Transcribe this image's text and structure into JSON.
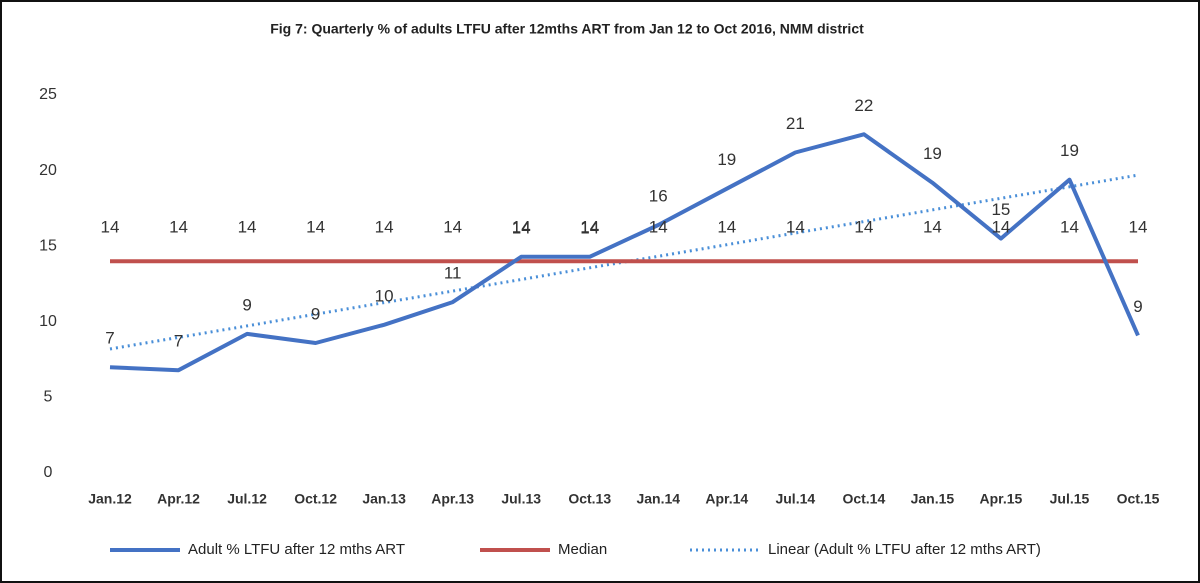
{
  "chart_data": {
    "type": "line",
    "title": "Fig 7: Quarterly % of adults LTFU after 12mths ART from Jan 12 to Oct 2016, NMM district",
    "categories": [
      "Jan.12",
      "Apr.12",
      "Jul.12",
      "Oct.12",
      "Jan.13",
      "Apr.13",
      "Jul.13",
      "Oct.13",
      "Jan.14",
      "Apr.14",
      "Jul.14",
      "Oct.14",
      "Jan.15",
      "Apr.15",
      "Jul.15",
      "Oct.15"
    ],
    "series": [
      {
        "name": "Adult % LTFU after 12 mths ART",
        "color": "#4472c4",
        "style": "solid",
        "values": [
          7,
          6.8,
          9.2,
          8.6,
          9.8,
          11.3,
          14.3,
          14.3,
          16.4,
          18.8,
          21.2,
          22.4,
          19.2,
          15.5,
          19.4,
          9.1
        ],
        "value_labels": [
          "7",
          "7",
          "9",
          "9",
          "10",
          "11",
          "14",
          "14",
          "16",
          "19",
          "21",
          "22",
          "19",
          "15",
          "19",
          "9"
        ]
      },
      {
        "name": "Median",
        "color": "#c0504d",
        "style": "solid",
        "values": [
          14,
          14,
          14,
          14,
          14,
          14,
          14,
          14,
          14,
          14,
          14,
          14,
          14,
          14,
          14,
          14
        ]
      },
      {
        "name": "Linear (Adult % LTFU after 12 mths ART)",
        "color": "#4a8fd8",
        "style": "dotted",
        "values": [
          8.2,
          8.97,
          9.73,
          10.5,
          11.27,
          12.03,
          12.8,
          13.57,
          14.33,
          15.1,
          15.87,
          16.63,
          17.4,
          18.17,
          18.93,
          19.7
        ]
      }
    ],
    "ylim": [
      0,
      25
    ],
    "yticks": [
      0,
      5,
      10,
      15,
      20,
      25
    ],
    "grid": false,
    "legend": "bottom"
  }
}
